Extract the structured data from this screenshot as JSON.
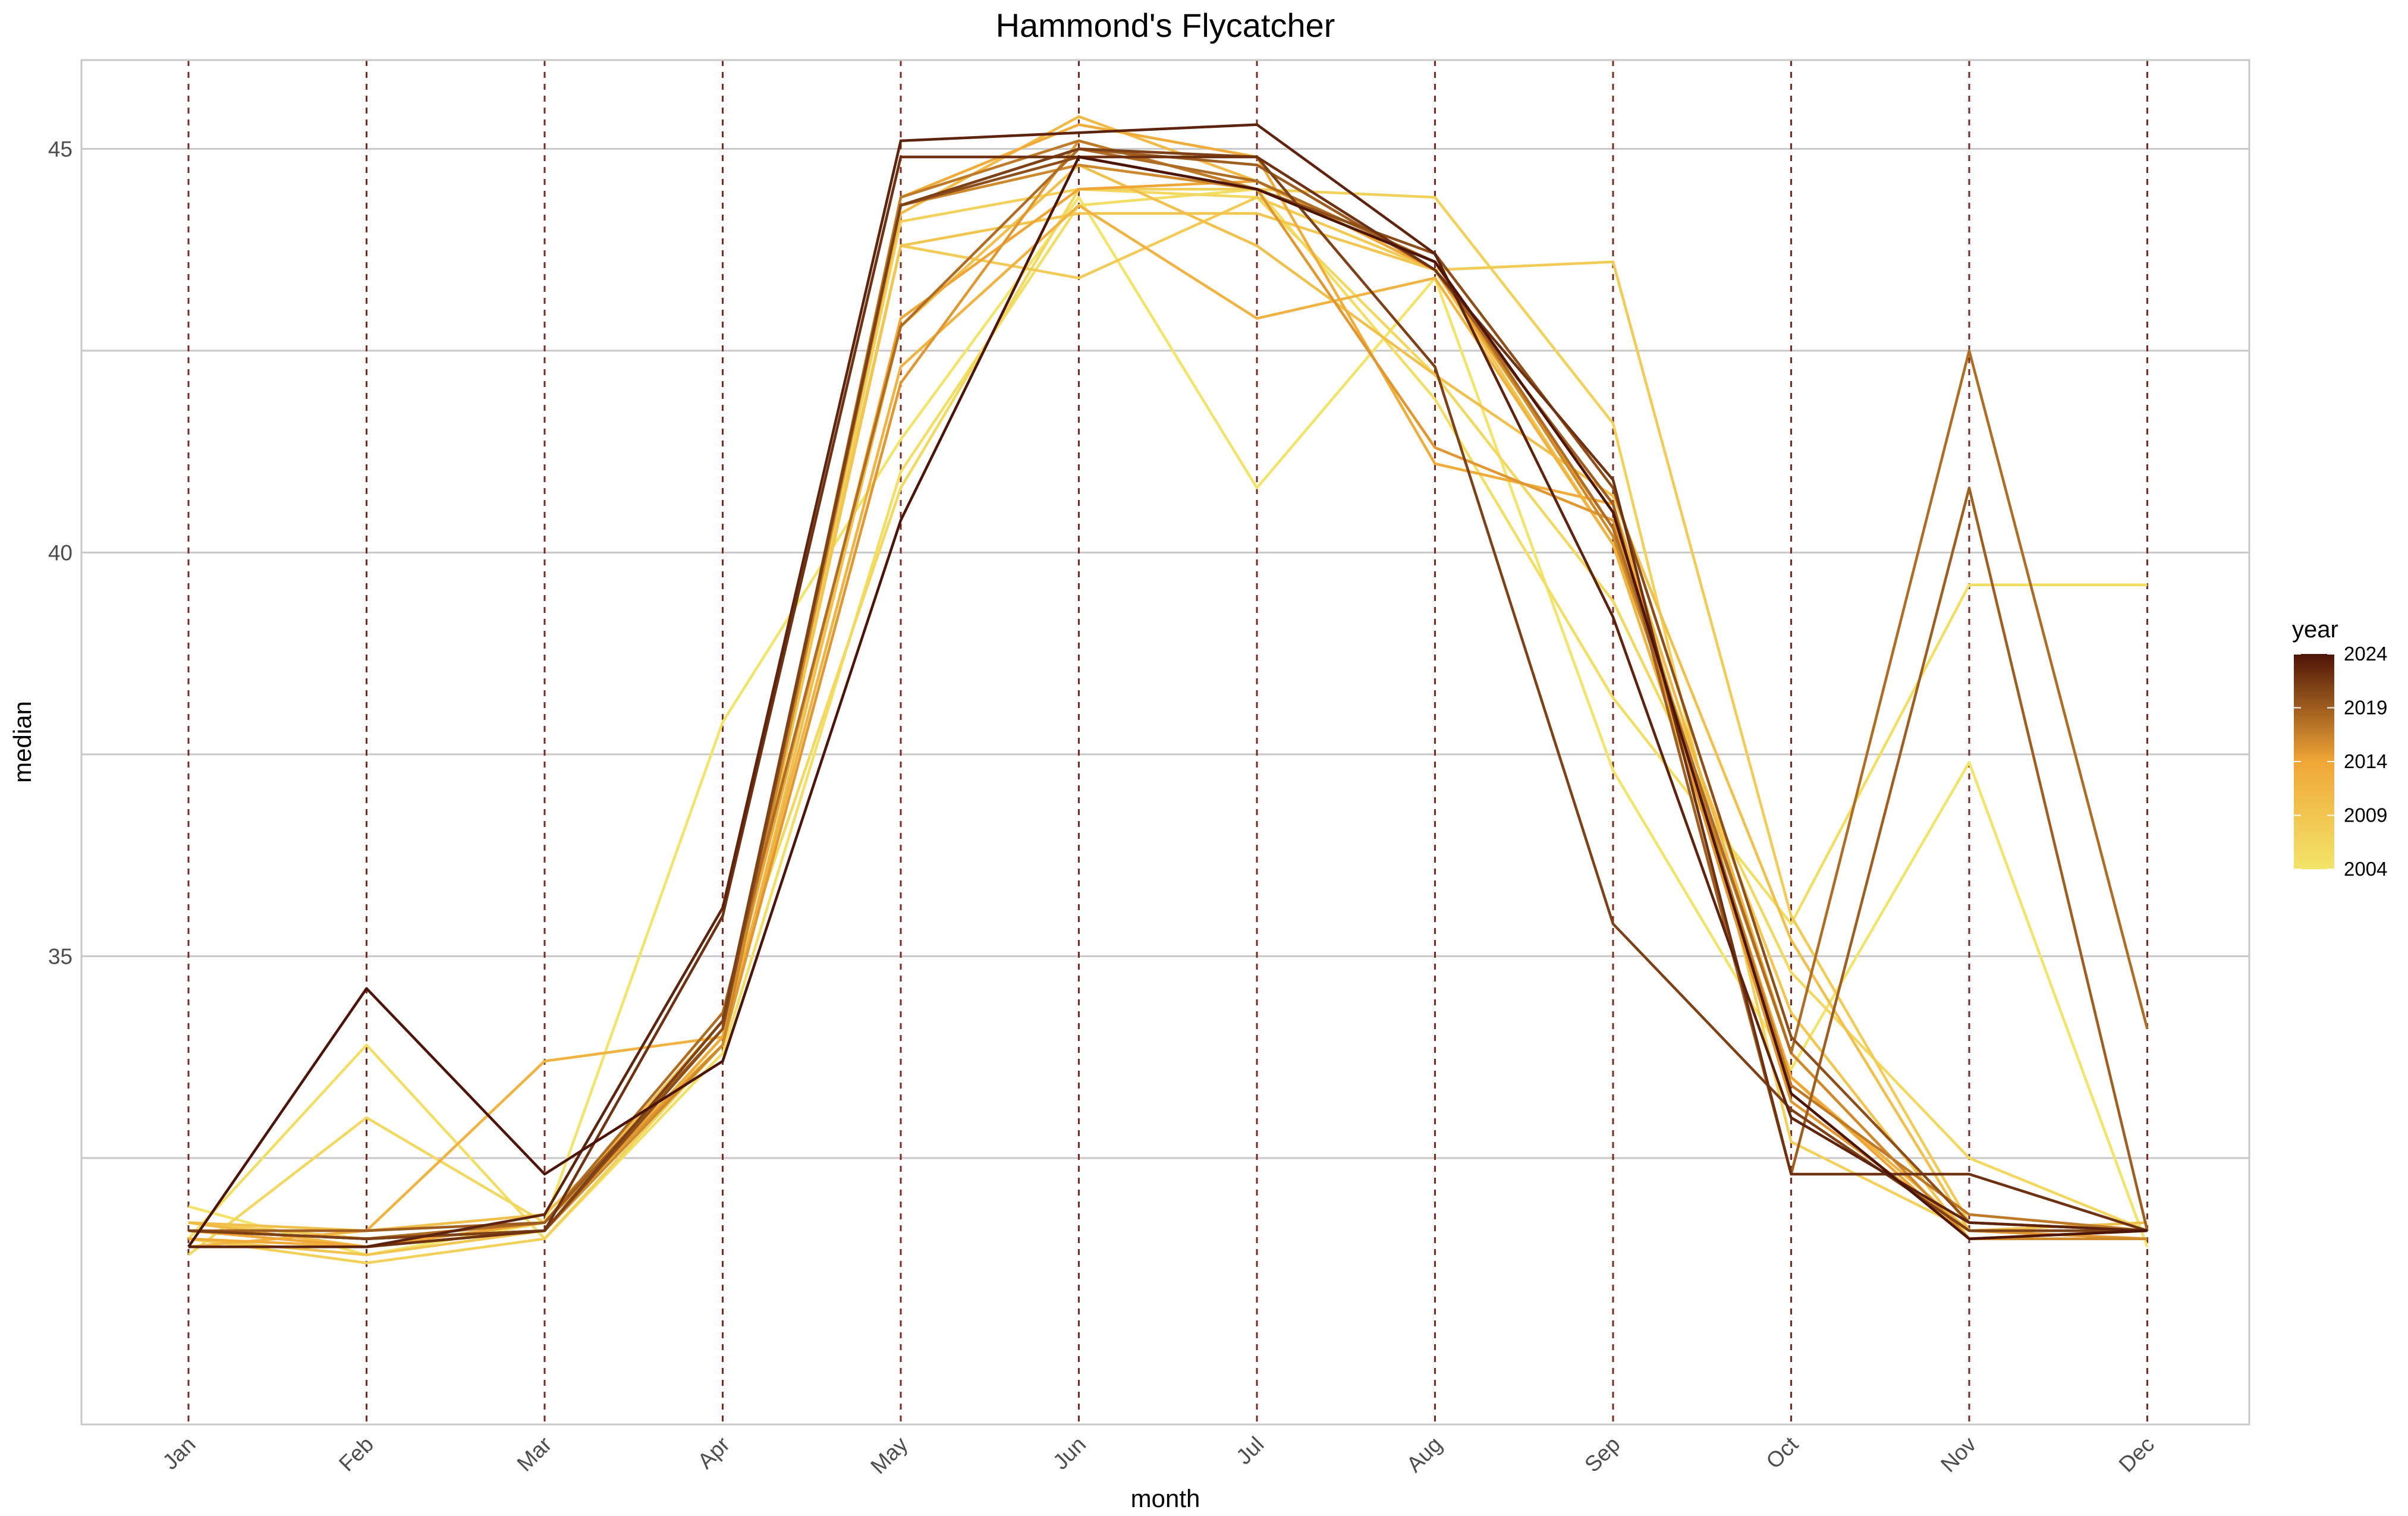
{
  "chart_data": {
    "type": "line",
    "title": "Hammond's Flycatcher",
    "xlabel": "month",
    "ylabel": "median",
    "categories": [
      "Jan",
      "Feb",
      "Mar",
      "Apr",
      "May",
      "Jun",
      "Jul",
      "Aug",
      "Sep",
      "Oct",
      "Nov",
      "Dec"
    ],
    "ylim": [
      29.2,
      46.1
    ],
    "y_ticks": [
      35,
      40,
      45
    ],
    "grid": true,
    "vertical_reference_lines": "dashed, at every month",
    "legend": {
      "title": "year",
      "position": "right",
      "type": "colorbar",
      "range": [
        2004,
        2024
      ],
      "breaks": [
        2024,
        2019,
        2014,
        2009,
        2004
      ],
      "low_color": "#f2e46a",
      "mid_color": "#f0a636",
      "high_color": "#4d1408"
    },
    "series": [
      {
        "year": 2004,
        "values": [
          31.9,
          31.3,
          31.7,
          37.9,
          41.4,
          44.4,
          40.8,
          43.4,
          37.3,
          33.6,
          37.4,
          31.4
        ]
      },
      {
        "year": 2005,
        "values": [
          31.5,
          33.9,
          31.5,
          33.8,
          41.0,
          44.3,
          44.5,
          41.9,
          38.2,
          35.4,
          39.6,
          39.6
        ]
      },
      {
        "year": 2006,
        "values": [
          31.3,
          33.0,
          31.7,
          34.3,
          40.8,
          44.5,
          44.4,
          42.2,
          39.4,
          34.8,
          32.5,
          31.6
        ]
      },
      {
        "year": 2007,
        "values": [
          31.5,
          31.2,
          31.5,
          33.9,
          44.1,
          44.5,
          44.5,
          44.4,
          41.6,
          32.7,
          31.6,
          31.5
        ]
      },
      {
        "year": 2008,
        "values": [
          31.7,
          31.5,
          31.6,
          34.2,
          43.8,
          43.4,
          44.4,
          43.5,
          43.6,
          35.5,
          31.7,
          31.6
        ]
      },
      {
        "year": 2009,
        "values": [
          31.5,
          31.3,
          31.6,
          34.0,
          43.8,
          44.2,
          44.2,
          43.5,
          40.1,
          34.3,
          31.5,
          31.6
        ]
      },
      {
        "year": 2010,
        "values": [
          31.7,
          31.6,
          31.8,
          33.9,
          42.8,
          44.8,
          43.8,
          42.2,
          40.7,
          35.2,
          31.6,
          31.7
        ]
      },
      {
        "year": 2011,
        "values": [
          31.7,
          31.4,
          31.7,
          34.2,
          44.2,
          45.4,
          44.6,
          43.5,
          40.6,
          33.8,
          31.5,
          31.6
        ]
      },
      {
        "year": 2012,
        "values": [
          31.4,
          31.6,
          33.7,
          34.0,
          42.3,
          44.3,
          42.9,
          43.4,
          40.1,
          33.5,
          31.6,
          31.6
        ]
      },
      {
        "year": 2013,
        "values": [
          31.5,
          31.4,
          31.6,
          34.0,
          44.4,
          45.3,
          44.9,
          41.1,
          40.6,
          33.3,
          31.5,
          31.5
        ]
      },
      {
        "year": 2014,
        "values": [
          31.6,
          31.4,
          31.7,
          34.1,
          42.9,
          44.5,
          44.6,
          43.5,
          40.3,
          33.5,
          31.5,
          31.6
        ]
      },
      {
        "year": 2015,
        "values": [
          31.6,
          31.5,
          31.7,
          33.9,
          42.1,
          45.1,
          44.5,
          41.3,
          40.4,
          33.2,
          31.6,
          31.5
        ]
      },
      {
        "year": 2016,
        "values": [
          31.4,
          31.4,
          31.6,
          33.9,
          44.3,
          44.8,
          44.5,
          43.6,
          40.2,
          33.8,
          31.5,
          31.5
        ]
      },
      {
        "year": 2017,
        "values": [
          31.6,
          31.5,
          31.6,
          34.1,
          44.4,
          45.1,
          44.5,
          43.6,
          40.5,
          33.4,
          31.8,
          31.6
        ]
      },
      {
        "year": 2018,
        "values": [
          31.6,
          31.5,
          31.7,
          34.3,
          42.8,
          45.0,
          44.6,
          43.6,
          40.3,
          33.8,
          42.5,
          34.1
        ]
      },
      {
        "year": 2019,
        "values": [
          31.6,
          31.6,
          31.7,
          34.1,
          44.3,
          45.0,
          44.8,
          43.5,
          40.6,
          32.3,
          40.8,
          31.6
        ]
      },
      {
        "year": 2020,
        "values": [
          31.6,
          31.5,
          31.6,
          34.1,
          44.3,
          44.9,
          44.5,
          43.7,
          40.8,
          34.0,
          31.7,
          31.6
        ]
      },
      {
        "year": 2021,
        "values": [
          31.6,
          31.5,
          31.6,
          34.2,
          44.3,
          45.0,
          44.9,
          42.3,
          35.4,
          33.1,
          31.6,
          31.6
        ]
      },
      {
        "year": 2022,
        "values": [
          31.4,
          31.4,
          31.6,
          35.5,
          44.9,
          44.9,
          44.9,
          43.5,
          40.9,
          32.3,
          32.3,
          31.6
        ]
      },
      {
        "year": 2023,
        "values": [
          31.4,
          31.4,
          31.8,
          35.6,
          45.1,
          45.2,
          45.3,
          43.7,
          39.2,
          33.0,
          31.7,
          31.6
        ]
      },
      {
        "year": 2024,
        "values": [
          31.4,
          34.6,
          32.3,
          33.7,
          40.4,
          44.9,
          44.5,
          43.6,
          40.5,
          33.3,
          31.5,
          31.6
        ]
      }
    ]
  }
}
